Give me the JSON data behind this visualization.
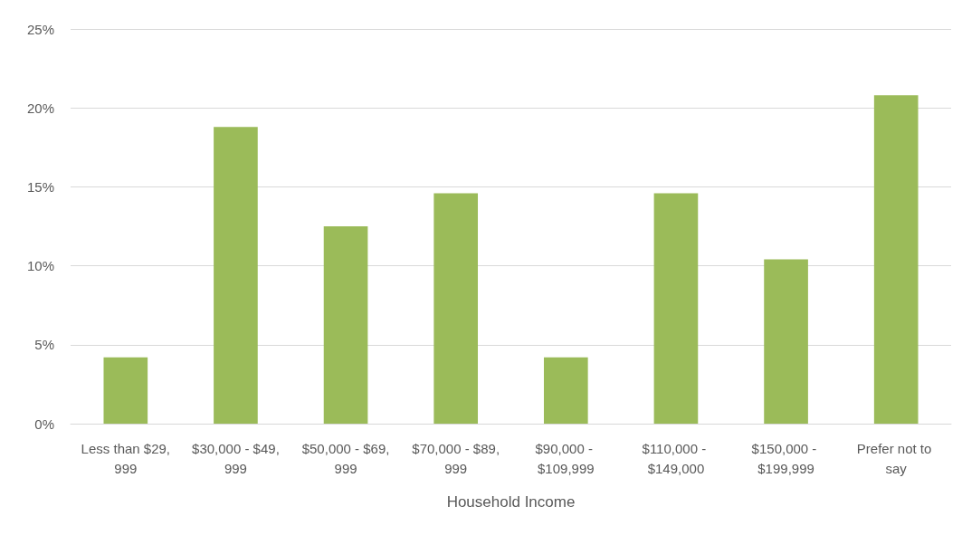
{
  "chart_data": {
    "type": "bar",
    "xlabel": "Household Income",
    "categories": [
      "Less than $29,999",
      "$30,000 - $49,999",
      "$50,000 - $69,999",
      "$70,000 - $89,999",
      "$90,000 - $109,999",
      "$110,000 - $149,000",
      "$150,000 - $199,999",
      "Prefer not to say"
    ],
    "values": [
      4.2,
      18.8,
      12.5,
      14.6,
      4.2,
      14.6,
      10.4,
      20.8
    ],
    "color": "#9bbb59",
    "ylim": [
      0,
      25
    ],
    "yticks": [
      {
        "value": 0,
        "label": "0%"
      },
      {
        "value": 5,
        "label": "5%"
      },
      {
        "value": 10,
        "label": "10%"
      },
      {
        "value": 15,
        "label": "15%"
      },
      {
        "value": 20,
        "label": "20%"
      },
      {
        "value": 25,
        "label": "25%"
      }
    ],
    "grid": "y"
  }
}
